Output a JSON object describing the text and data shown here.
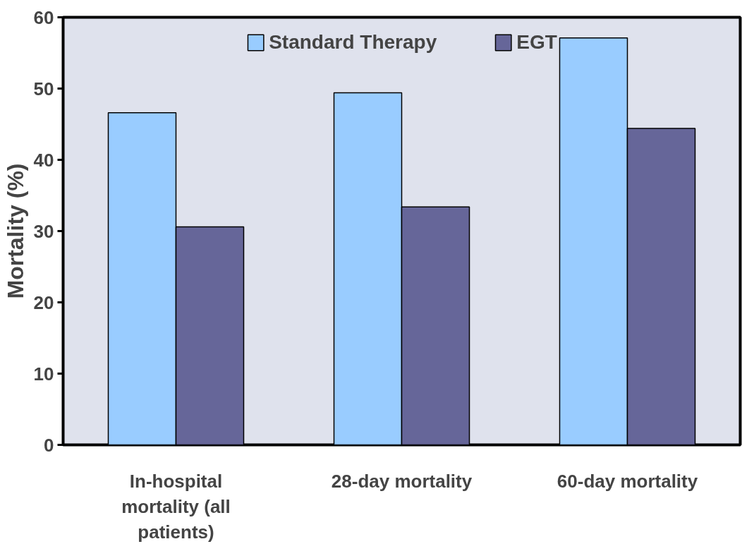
{
  "chart_data": {
    "type": "bar",
    "ylabel": "Mortality (%)",
    "categories": [
      "In-hospital mortality (all patients)",
      "28-day mortality",
      "60-day mortality"
    ],
    "series": [
      {
        "name": "Standard Therapy",
        "color": "#99ccff",
        "values": [
          46.6,
          49.4,
          57.1
        ]
      },
      {
        "name": "EGT",
        "color": "#666699",
        "values": [
          30.6,
          33.4,
          44.4
        ]
      }
    ],
    "ylim": [
      0,
      60
    ],
    "yticks": [
      0,
      10,
      20,
      30,
      40,
      50,
      60
    ],
    "grid": false,
    "legend": "top"
  }
}
